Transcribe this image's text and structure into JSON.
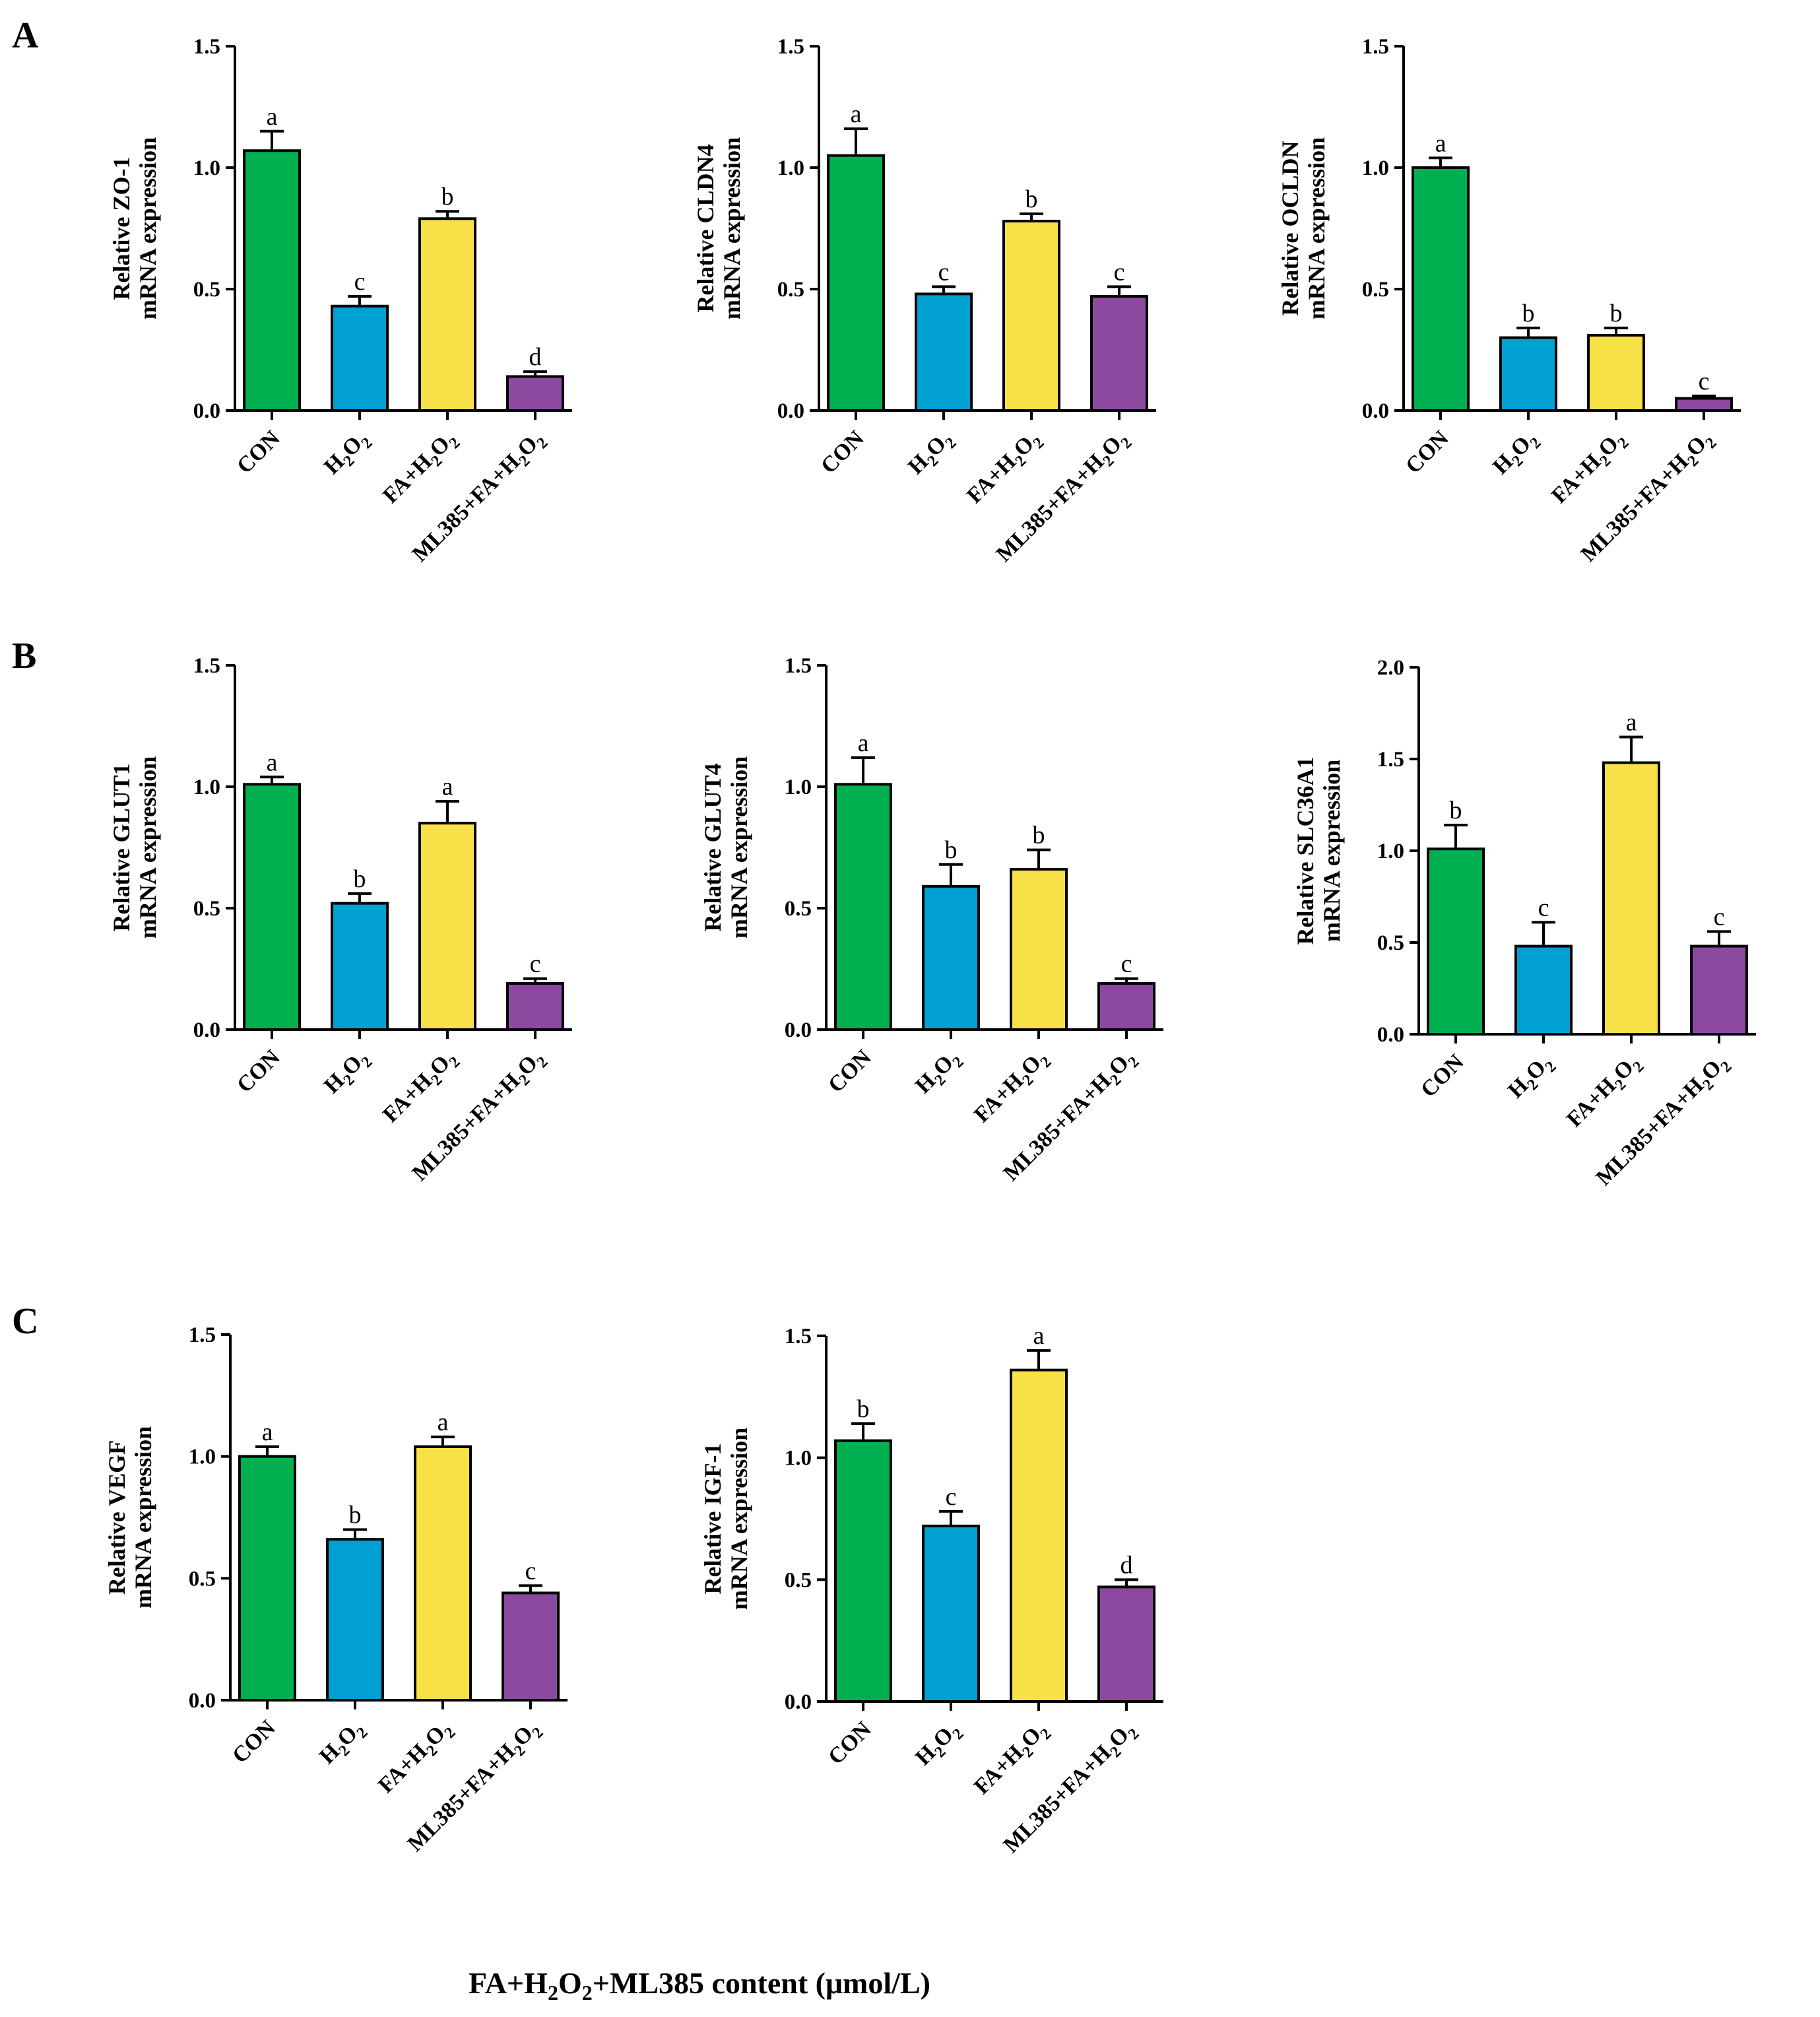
{
  "panel_labels": [
    "A",
    "B",
    "C"
  ],
  "footer": {
    "prefix": "FA+H",
    "sub1": "2",
    "mid": "O",
    "sub2": "2",
    "suffix": "+ML385 content (μmol/L)"
  },
  "colors": {
    "CON": "#00b050",
    "H2O2": "#00a0d2",
    "FA+H2O2": "#f8e047",
    "ML385+FA+H2O2": "#8b4aa0",
    "axis": "#000000"
  },
  "chart_data": [
    {
      "type": "bar",
      "panel": "A",
      "ylabel_top": "Relative ZO-1",
      "ylabel_bottom": "mRNA expression",
      "categories": [
        "CON",
        "H2O2",
        "FA+H2O2",
        "ML385+FA+H2O2"
      ],
      "values": [
        1.07,
        0.43,
        0.79,
        0.14
      ],
      "errors": [
        0.08,
        0.04,
        0.03,
        0.02
      ],
      "sig": [
        "a",
        "c",
        "b",
        "d"
      ],
      "ylim": [
        0,
        1.5
      ],
      "yticks": [
        "0.0",
        "0.5",
        "1.0",
        "1.5"
      ]
    },
    {
      "type": "bar",
      "panel": "A",
      "ylabel_top": "Relative CLDN4",
      "ylabel_bottom": "mRNA expression",
      "categories": [
        "CON",
        "H2O2",
        "FA+H2O2",
        "ML385+FA+H2O2"
      ],
      "values": [
        1.05,
        0.48,
        0.78,
        0.47
      ],
      "errors": [
        0.11,
        0.03,
        0.03,
        0.04
      ],
      "sig": [
        "a",
        "c",
        "b",
        "c"
      ],
      "ylim": [
        0,
        1.5
      ],
      "yticks": [
        "0.0",
        "0.5",
        "1.0",
        "1.5"
      ]
    },
    {
      "type": "bar",
      "panel": "A",
      "ylabel_top": "Relative OCLDN",
      "ylabel_bottom": "mRNA expression",
      "categories": [
        "CON",
        "H2O2",
        "FA+H2O2",
        "ML385+FA+H2O2"
      ],
      "values": [
        1.0,
        0.3,
        0.31,
        0.05
      ],
      "errors": [
        0.04,
        0.04,
        0.03,
        0.01
      ],
      "sig": [
        "a",
        "b",
        "b",
        "c"
      ],
      "ylim": [
        0,
        1.5
      ],
      "yticks": [
        "0.0",
        "0.5",
        "1.0",
        "1.5"
      ]
    },
    {
      "type": "bar",
      "panel": "B",
      "ylabel_top": "Relative GLUT1",
      "ylabel_bottom": "mRNA expression",
      "categories": [
        "CON",
        "H2O2",
        "FA+H2O2",
        "ML385+FA+H2O2"
      ],
      "values": [
        1.01,
        0.52,
        0.85,
        0.19
      ],
      "errors": [
        0.03,
        0.04,
        0.09,
        0.02
      ],
      "sig": [
        "a",
        "b",
        "a",
        "c"
      ],
      "ylim": [
        0,
        1.5
      ],
      "yticks": [
        "0.0",
        "0.5",
        "1.0",
        "1.5"
      ]
    },
    {
      "type": "bar",
      "panel": "B",
      "ylabel_top": "Relative GLUT4",
      "ylabel_bottom": "mRNA expression",
      "categories": [
        "CON",
        "H2O2",
        "FA+H2O2",
        "ML385+FA+H2O2"
      ],
      "values": [
        1.01,
        0.59,
        0.66,
        0.19
      ],
      "errors": [
        0.11,
        0.09,
        0.08,
        0.02
      ],
      "sig": [
        "a",
        "b",
        "b",
        "c"
      ],
      "ylim": [
        0,
        1.5
      ],
      "yticks": [
        "0.0",
        "0.5",
        "1.0",
        "1.5"
      ]
    },
    {
      "type": "bar",
      "panel": "B",
      "ylabel_top": "Relative SLC36A1",
      "ylabel_bottom": "mRNA expression",
      "categories": [
        "CON",
        "H2O2",
        "FA+H2O2",
        "ML385+FA+H2O2"
      ],
      "values": [
        1.01,
        0.48,
        1.48,
        0.48
      ],
      "errors": [
        0.13,
        0.13,
        0.14,
        0.08
      ],
      "sig": [
        "b",
        "c",
        "a",
        "c"
      ],
      "ylim": [
        0,
        2.0
      ],
      "yticks": [
        "0.0",
        "0.5",
        "1.0",
        "1.5",
        "2.0"
      ]
    },
    {
      "type": "bar",
      "panel": "C",
      "ylabel_top": "Relative VEGF",
      "ylabel_bottom": "mRNA expression",
      "categories": [
        "CON",
        "H2O2",
        "FA+H2O2",
        "ML385+FA+H2O2"
      ],
      "values": [
        1.0,
        0.66,
        1.04,
        0.44
      ],
      "errors": [
        0.04,
        0.04,
        0.04,
        0.03
      ],
      "sig": [
        "a",
        "b",
        "a",
        "c"
      ],
      "ylim": [
        0,
        1.5
      ],
      "yticks": [
        "0.0",
        "0.5",
        "1.0",
        "1.5"
      ]
    },
    {
      "type": "bar",
      "panel": "C",
      "ylabel_top": "Relative IGF-1",
      "ylabel_bottom": "mRNA expression",
      "categories": [
        "CON",
        "H2O2",
        "FA+H2O2",
        "ML385+FA+H2O2"
      ],
      "values": [
        1.07,
        0.72,
        1.36,
        0.47
      ],
      "errors": [
        0.07,
        0.06,
        0.08,
        0.03
      ],
      "sig": [
        "b",
        "c",
        "a",
        "d"
      ],
      "ylim": [
        0,
        1.5
      ],
      "yticks": [
        "0.0",
        "0.5",
        "1.0",
        "1.5"
      ]
    }
  ]
}
